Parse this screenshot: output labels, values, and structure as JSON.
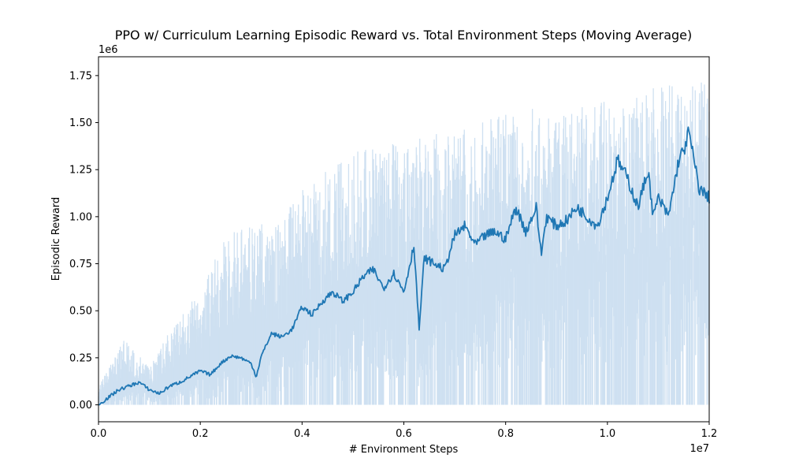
{
  "chart_data": {
    "type": "line",
    "title": "PPO w/ Curriculum Learning Episodic Reward vs. Total Environment Steps (Moving Average)",
    "xlabel": "# Environment Steps",
    "ylabel": "Episodic Reward",
    "x_offset_text": "1e7",
    "y_offset_text": "1e6",
    "xlim": [
      0.0,
      1.2
    ],
    "ylim": [
      -0.09,
      1.85
    ],
    "x_ticks": [
      {
        "value": 0.0,
        "label": "0.0"
      },
      {
        "value": 0.2,
        "label": "0.2"
      },
      {
        "value": 0.4,
        "label": "0.4"
      },
      {
        "value": 0.6,
        "label": "0.6"
      },
      {
        "value": 0.8,
        "label": "0.8"
      },
      {
        "value": 1.0,
        "label": "1.0"
      },
      {
        "value": 1.2,
        "label": "1.2"
      }
    ],
    "y_ticks": [
      {
        "value": 0.0,
        "label": "0.00"
      },
      {
        "value": 0.25,
        "label": "0.25"
      },
      {
        "value": 0.5,
        "label": "0.50"
      },
      {
        "value": 0.75,
        "label": "0.75"
      },
      {
        "value": 1.0,
        "label": "1.00"
      },
      {
        "value": 1.25,
        "label": "1.25"
      },
      {
        "value": 1.5,
        "label": "1.50"
      },
      {
        "value": 1.75,
        "label": "1.75"
      }
    ],
    "grid": false,
    "legend": "none",
    "series": [
      {
        "role": "moving_average",
        "color": "#1f77b4",
        "x": [
          0.0,
          0.02,
          0.04,
          0.06,
          0.08,
          0.1,
          0.12,
          0.14,
          0.16,
          0.18,
          0.2,
          0.22,
          0.24,
          0.26,
          0.28,
          0.3,
          0.31,
          0.32,
          0.34,
          0.36,
          0.38,
          0.4,
          0.42,
          0.44,
          0.46,
          0.48,
          0.5,
          0.52,
          0.54,
          0.56,
          0.58,
          0.6,
          0.62,
          0.63,
          0.64,
          0.66,
          0.68,
          0.7,
          0.72,
          0.74,
          0.76,
          0.78,
          0.8,
          0.82,
          0.84,
          0.86,
          0.87,
          0.88,
          0.9,
          0.92,
          0.94,
          0.96,
          0.98,
          1.0,
          1.02,
          1.04,
          1.06,
          1.08,
          1.09,
          1.1,
          1.12,
          1.14,
          1.15,
          1.16,
          1.18,
          1.2
        ],
        "y": [
          0.0,
          0.04,
          0.08,
          0.1,
          0.12,
          0.08,
          0.06,
          0.1,
          0.12,
          0.15,
          0.18,
          0.16,
          0.22,
          0.26,
          0.25,
          0.22,
          0.15,
          0.26,
          0.38,
          0.36,
          0.4,
          0.52,
          0.48,
          0.55,
          0.6,
          0.55,
          0.6,
          0.68,
          0.72,
          0.62,
          0.7,
          0.6,
          0.85,
          0.4,
          0.78,
          0.75,
          0.72,
          0.9,
          0.95,
          0.85,
          0.9,
          0.92,
          0.88,
          1.05,
          0.92,
          1.05,
          0.8,
          1.0,
          0.95,
          0.98,
          1.05,
          1.0,
          0.95,
          1.1,
          1.3,
          1.2,
          1.05,
          1.25,
          1.0,
          1.1,
          1.0,
          1.3,
          1.35,
          1.45,
          1.15,
          1.1
        ]
      },
      {
        "role": "raw_upper_envelope",
        "color": "#c6dbef",
        "x": [
          0.0,
          0.05,
          0.1,
          0.15,
          0.2,
          0.25,
          0.3,
          0.35,
          0.4,
          0.45,
          0.5,
          0.55,
          0.6,
          0.65,
          0.7,
          0.75,
          0.8,
          0.85,
          0.9,
          0.95,
          1.0,
          1.05,
          1.1,
          1.15,
          1.2
        ],
        "y": [
          0.1,
          0.35,
          0.2,
          0.45,
          0.6,
          0.9,
          1.0,
          0.95,
          1.15,
          1.25,
          1.35,
          1.4,
          1.38,
          1.45,
          1.45,
          1.5,
          1.55,
          1.6,
          1.55,
          1.6,
          1.65,
          1.65,
          1.72,
          1.7,
          1.72
        ]
      }
    ]
  }
}
